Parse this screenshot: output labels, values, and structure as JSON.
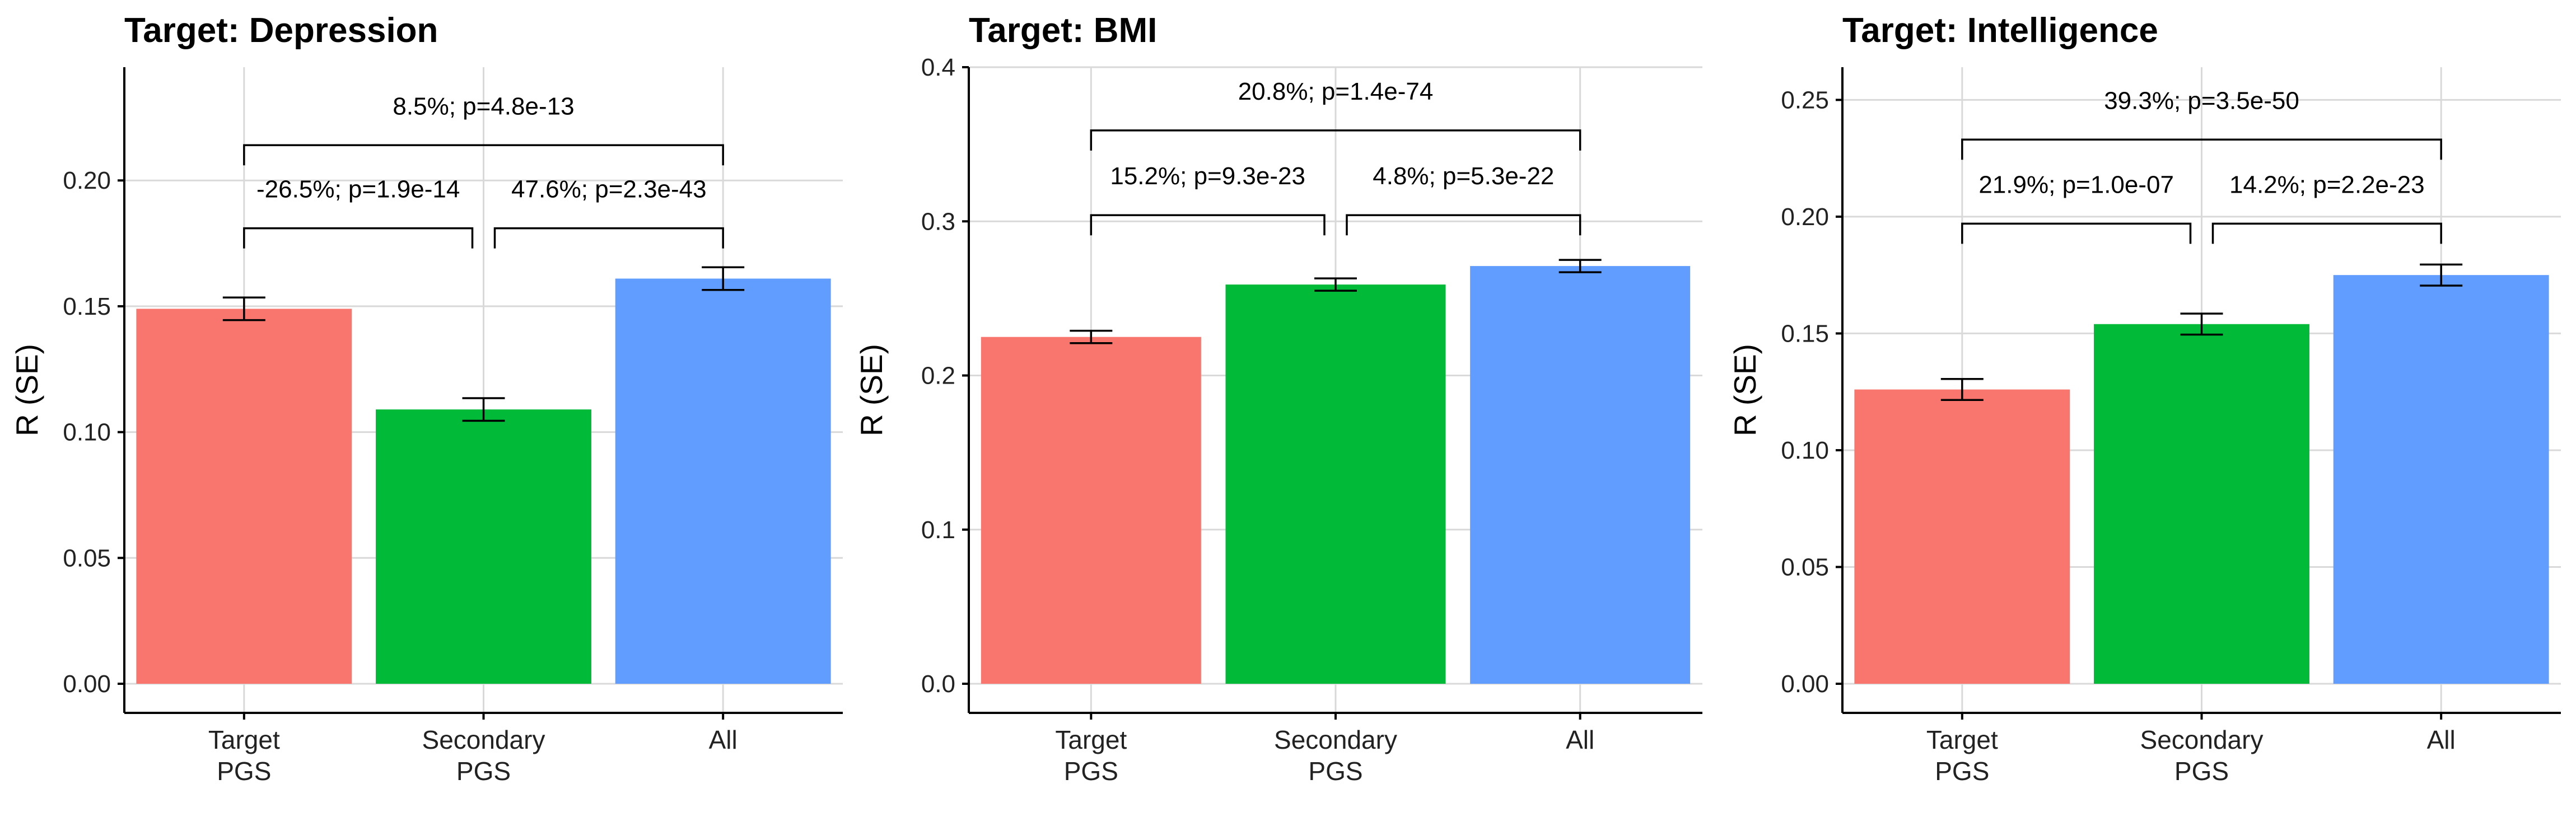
{
  "colors": {
    "Target PGS": "#F8766D",
    "Secondary PGS": "#00BA38",
    "All": "#619CFF",
    "grid": "#d9d9d9"
  },
  "chart_data": [
    {
      "type": "bar",
      "title": "Target: Depression",
      "ylabel": "R (SE)",
      "xlabel": "",
      "ylim": [
        0,
        0.245
      ],
      "yticks": [
        0.0,
        0.05,
        0.1,
        0.15,
        0.2
      ],
      "ytick_labels": [
        "0.00",
        "0.05",
        "0.10",
        "0.15",
        "0.20"
      ],
      "categories": [
        [
          "Target",
          "PGS"
        ],
        [
          "Secondary",
          "PGS"
        ],
        [
          "All"
        ]
      ],
      "values": [
        0.149,
        0.109,
        0.161
      ],
      "se": [
        0.0045,
        0.0045,
        0.0045
      ],
      "grid": true,
      "annotations": [
        {
          "text": "-26.5%; p=1.9e-14",
          "from": 0,
          "to": 1,
          "level": 0.181
        },
        {
          "text": "47.6%; p=2.3e-43",
          "from": 1,
          "to": 2,
          "level": 0.181
        },
        {
          "text": "8.5%; p=4.8e-13",
          "from": 0,
          "to": 2,
          "level": 0.214
        }
      ]
    },
    {
      "type": "bar",
      "title": "Target: BMI",
      "ylabel": "R (SE)",
      "xlabel": "",
      "ylim": [
        0,
        0.4
      ],
      "yticks": [
        0.0,
        0.1,
        0.2,
        0.3,
        0.4
      ],
      "ytick_labels": [
        "0.0",
        "0.1",
        "0.2",
        "0.3",
        "0.4"
      ],
      "categories": [
        [
          "Target",
          "PGS"
        ],
        [
          "Secondary",
          "PGS"
        ],
        [
          "All"
        ]
      ],
      "values": [
        0.225,
        0.259,
        0.271
      ],
      "se": [
        0.004,
        0.004,
        0.004
      ],
      "grid": true,
      "annotations": [
        {
          "text": "15.2%; p=9.3e-23",
          "from": 0,
          "to": 1,
          "level": 0.304
        },
        {
          "text": "4.8%; p=5.3e-22",
          "from": 1,
          "to": 2,
          "level": 0.304
        },
        {
          "text": "20.8%; p=1.4e-74",
          "from": 0,
          "to": 2,
          "level": 0.359
        }
      ]
    },
    {
      "type": "bar",
      "title": "Target: Intelligence",
      "ylabel": "R (SE)",
      "xlabel": "",
      "ylim": [
        0,
        0.264
      ],
      "yticks": [
        0.0,
        0.05,
        0.1,
        0.15,
        0.2,
        0.25
      ],
      "ytick_labels": [
        "0.00",
        "0.05",
        "0.10",
        "0.15",
        "0.20",
        "0.25"
      ],
      "categories": [
        [
          "Target",
          "PGS"
        ],
        [
          "Secondary",
          "PGS"
        ],
        [
          "All"
        ]
      ],
      "values": [
        0.126,
        0.154,
        0.175
      ],
      "se": [
        0.0045,
        0.0045,
        0.0045
      ],
      "grid": true,
      "annotations": [
        {
          "text": "21.9%; p=1.0e-07",
          "from": 0,
          "to": 1,
          "level": 0.197
        },
        {
          "text": "14.2%; p=2.2e-23",
          "from": 1,
          "to": 2,
          "level": 0.197
        },
        {
          "text": "39.3%; p=3.5e-50",
          "from": 0,
          "to": 2,
          "level": 0.233
        }
      ]
    }
  ]
}
